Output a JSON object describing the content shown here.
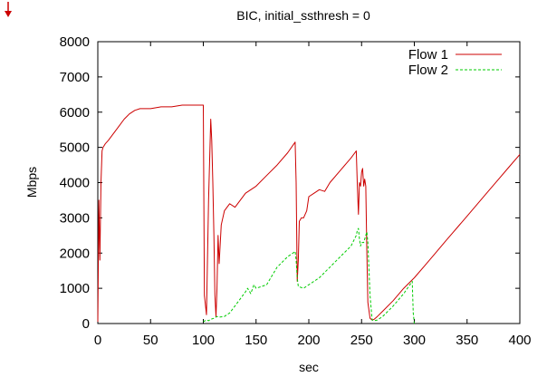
{
  "chart_data": {
    "type": "line",
    "title": "BIC, initial_ssthresh = 0",
    "xlabel": "sec",
    "ylabel": "Mbps",
    "xlim": [
      0,
      400
    ],
    "ylim": [
      0,
      8000
    ],
    "x_ticks": [
      0,
      50,
      100,
      150,
      200,
      250,
      300,
      350,
      400
    ],
    "y_ticks": [
      0,
      1000,
      2000,
      3000,
      4000,
      5000,
      6000,
      7000,
      8000
    ],
    "grid": false,
    "legend_position": "top-right",
    "series": [
      {
        "name": "Flow 1",
        "color": "#cc0000",
        "dash": "solid",
        "x": [
          0,
          1,
          2,
          3,
          4,
          5,
          7,
          10,
          15,
          20,
          25,
          30,
          35,
          40,
          45,
          50,
          60,
          70,
          80,
          90,
          98,
          100,
          101,
          103,
          105,
          107,
          108,
          109,
          110,
          111,
          112,
          113,
          114,
          115,
          117,
          120,
          125,
          130,
          140,
          150,
          160,
          170,
          180,
          187,
          188,
          189,
          190,
          191,
          193,
          195,
          198,
          200,
          205,
          210,
          215,
          220,
          230,
          240,
          245,
          246,
          247,
          248,
          249,
          250,
          251,
          252,
          253,
          254,
          255,
          256,
          258,
          260,
          262,
          265,
          270,
          280,
          290,
          300,
          310,
          320,
          330,
          340,
          350,
          360,
          370,
          380,
          390,
          400
        ],
        "y": [
          50,
          3500,
          1800,
          4000,
          4900,
          5000,
          5100,
          5200,
          5400,
          5600,
          5800,
          5950,
          6050,
          6100,
          6100,
          6100,
          6150,
          6150,
          6200,
          6200,
          6200,
          6200,
          800,
          250,
          3500,
          5800,
          5200,
          4000,
          2500,
          800,
          200,
          1000,
          2500,
          1700,
          2800,
          3200,
          3400,
          3300,
          3700,
          3900,
          4200,
          4500,
          4850,
          5150,
          4000,
          1200,
          1800,
          2900,
          3000,
          3000,
          3200,
          3600,
          3700,
          3800,
          3750,
          4000,
          4350,
          4700,
          4900,
          3900,
          3100,
          4000,
          3900,
          4300,
          4400,
          3900,
          4100,
          3900,
          2000,
          600,
          150,
          100,
          120,
          200,
          350,
          650,
          1000,
          1300,
          1650,
          2000,
          2350,
          2700,
          3050,
          3400,
          3750,
          4100,
          4450,
          4800
        ]
      },
      {
        "name": "Flow 2",
        "color": "#00cc00",
        "dash": "dashed",
        "x": [
          100,
          103,
          105,
          107,
          110,
          113,
          115,
          120,
          125,
          130,
          135,
          140,
          142,
          145,
          148,
          150,
          155,
          160,
          165,
          170,
          175,
          180,
          185,
          187,
          188,
          189,
          190,
          195,
          200,
          210,
          220,
          230,
          240,
          245,
          246,
          247,
          248,
          249,
          250,
          252,
          254,
          255,
          256,
          258,
          260,
          262,
          265,
          270,
          280,
          290,
          298,
          299,
          300
        ],
        "y": [
          50,
          100,
          80,
          120,
          150,
          200,
          180,
          200,
          300,
          500,
          700,
          900,
          1000,
          850,
          1100,
          1000,
          1050,
          1100,
          1350,
          1600,
          1750,
          1900,
          2000,
          2050,
          1800,
          1300,
          1050,
          1000,
          1100,
          1300,
          1600,
          1900,
          2200,
          2500,
          2650,
          2700,
          2400,
          2200,
          2300,
          2300,
          2500,
          2600,
          2300,
          800,
          100,
          80,
          100,
          200,
          500,
          850,
          1200,
          300,
          0
        ]
      }
    ]
  }
}
